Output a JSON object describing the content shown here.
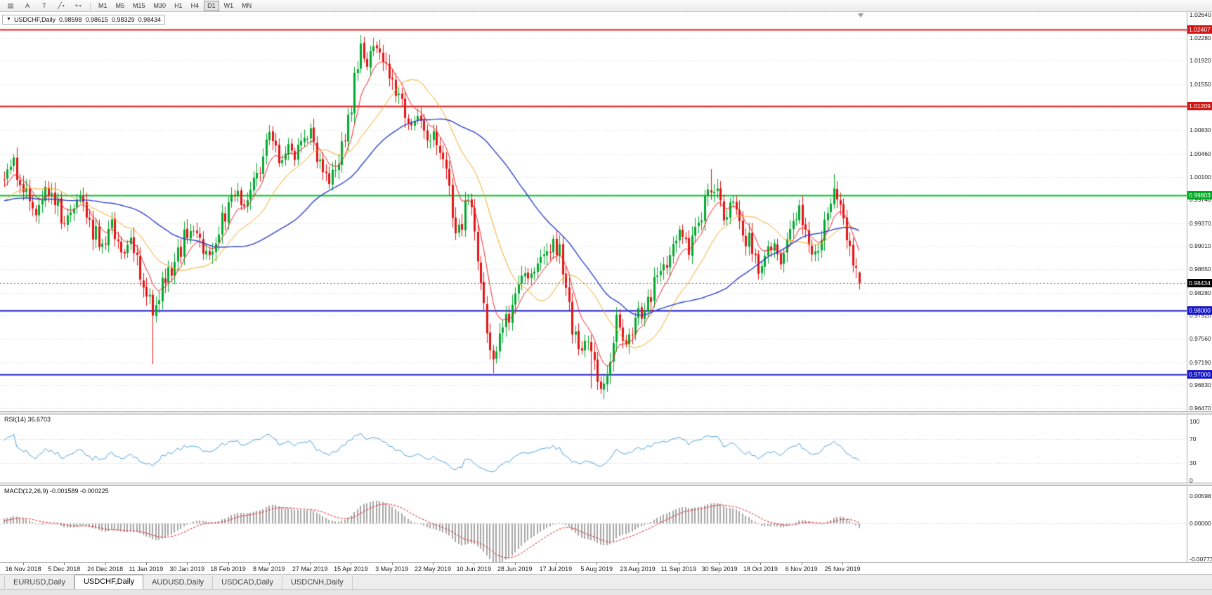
{
  "toolbar": {
    "dropdown_glyph": "▾",
    "icon_buttons": [
      {
        "button": "charts-list-button",
        "icon": "charts-list-icon",
        "glyph": "▤",
        "dropdown": false
      },
      {
        "button": "cursor-tool-button",
        "icon": "cursor-a-icon",
        "glyph": "A",
        "dropdown": false
      },
      {
        "button": "text-tool-button",
        "icon": "text-tool-icon",
        "glyph": "T",
        "dropdown": false
      },
      {
        "button": "draw-tools-button",
        "icon": "trendline-icon",
        "glyph": "╱",
        "dropdown": true
      },
      {
        "button": "crosshair-button",
        "icon": "crosshair-icon",
        "glyph": "+",
        "dropdown": true
      }
    ],
    "timeframes": [
      "M1",
      "M5",
      "M15",
      "M30",
      "H1",
      "H4",
      "D1",
      "W1",
      "MN"
    ],
    "active_timeframe": "D1"
  },
  "chart": {
    "dropdown_glyph": "▼",
    "title": "USDCHF,Daily",
    "open": "0.98598",
    "high": "0.98615",
    "low": "0.98329",
    "close": "0.98434"
  },
  "chart_data": {
    "type": "candlestick",
    "symbol": "USDCHF",
    "timeframe": "Daily",
    "current": {
      "open": 0.98598,
      "high": 0.98615,
      "low": 0.98329,
      "close": 0.98434
    },
    "y_ticks": [
      1.0264,
      1.0228,
      1.0192,
      1.0155,
      1.0119,
      1.0083,
      1.0046,
      1.001,
      0.9974,
      0.9937,
      0.9901,
      0.9865,
      0.9828,
      0.9792,
      0.9756,
      0.9719,
      0.9683,
      0.9647
    ],
    "x_dates": [
      "16 Nov 2018",
      "5 Dec 2018",
      "24 Dec 2018",
      "11 Jan 2019",
      "30 Jan 2019",
      "18 Feb 2019",
      "8 Mar 2019",
      "27 Mar 2019",
      "15 Apr 2019",
      "3 May 2019",
      "22 May 2019",
      "10 Jun 2019",
      "28 Jun 2019",
      "17 Jul 2019",
      "5 Aug 2019",
      "23 Aug 2019",
      "11 Sep 2019",
      "30 Sep 2019",
      "18 Oct 2019",
      "6 Nov 2019",
      "25 Nov 2019"
    ],
    "bars_per_label": 13,
    "price_path_anchors": [
      [
        -60,
        0.995
      ],
      [
        -40,
        0.999
      ],
      [
        -20,
        0.9945
      ],
      [
        -5,
        0.9985
      ],
      [
        0,
        1.0005
      ],
      [
        3,
        1.0038
      ],
      [
        6,
        0.9988
      ],
      [
        10,
        0.9955
      ],
      [
        13,
        1.0
      ],
      [
        16,
        0.997
      ],
      [
        19,
        0.9935
      ],
      [
        22,
        0.9968
      ],
      [
        25,
        0.9978
      ],
      [
        28,
        0.9925
      ],
      [
        31,
        0.9898
      ],
      [
        34,
        0.9942
      ],
      [
        37,
        0.9882
      ],
      [
        40,
        0.9908
      ],
      [
        43,
        0.9852
      ],
      [
        45,
        0.9828
      ],
      [
        47,
        0.9795
      ],
      [
        49,
        0.9822
      ],
      [
        51,
        0.9855
      ],
      [
        54,
        0.9872
      ],
      [
        57,
        0.9912
      ],
      [
        60,
        0.9932
      ],
      [
        63,
        0.9898
      ],
      [
        65,
        0.9885
      ],
      [
        68,
        0.9932
      ],
      [
        71,
        0.9968
      ],
      [
        74,
        0.9982
      ],
      [
        76,
        0.9958
      ],
      [
        79,
        1.0012
      ],
      [
        82,
        1.0042
      ],
      [
        84,
        1.0075
      ],
      [
        87,
        1.0032
      ],
      [
        90,
        1.0062
      ],
      [
        92,
        1.0042
      ],
      [
        95,
        1.0068
      ],
      [
        97,
        1.0082
      ],
      [
        100,
        1.0032
      ],
      [
        103,
        1.0002
      ],
      [
        106,
        1.0042
      ],
      [
        109,
        1.0092
      ],
      [
        111,
        1.0162
      ],
      [
        113,
        1.0208
      ],
      [
        115,
        1.0182
      ],
      [
        117,
        1.0216
      ],
      [
        120,
        1.0192
      ],
      [
        123,
        1.0152
      ],
      [
        126,
        1.0122
      ],
      [
        129,
        1.0092
      ],
      [
        131,
        1.0112
      ],
      [
        134,
        1.0078
      ],
      [
        137,
        1.0062
      ],
      [
        139,
        1.0022
      ],
      [
        141,
        0.9992
      ],
      [
        143,
        0.9922
      ],
      [
        145,
        0.9942
      ],
      [
        147,
        0.9978
      ],
      [
        149,
        0.9942
      ],
      [
        151,
        0.9832
      ],
      [
        153,
        0.9772
      ],
      [
        155,
        0.9726
      ],
      [
        157,
        0.9752
      ],
      [
        159,
        0.9786
      ],
      [
        162,
        0.9822
      ],
      [
        165,
        0.9852
      ],
      [
        168,
        0.9862
      ],
      [
        171,
        0.9876
      ],
      [
        174,
        0.9912
      ],
      [
        176,
        0.9892
      ],
      [
        178,
        0.9842
      ],
      [
        180,
        0.9772
      ],
      [
        182,
        0.9736
      ],
      [
        184,
        0.9752
      ],
      [
        186,
        0.9726
      ],
      [
        188,
        0.9692
      ],
      [
        190,
        0.9673
      ],
      [
        192,
        0.9722
      ],
      [
        194,
        0.9782
      ],
      [
        196,
        0.9756
      ],
      [
        198,
        0.9746
      ],
      [
        200,
        0.9802
      ],
      [
        202,
        0.9782
      ],
      [
        205,
        0.9826
      ],
      [
        208,
        0.9856
      ],
      [
        211,
        0.9886
      ],
      [
        214,
        0.9922
      ],
      [
        217,
        0.9896
      ],
      [
        220,
        0.9942
      ],
      [
        223,
        0.9986
      ],
      [
        225,
        0.9996
      ],
      [
        228,
        0.9946
      ],
      [
        231,
        0.9976
      ],
      [
        234,
        0.9932
      ],
      [
        237,
        0.9892
      ],
      [
        239,
        0.9862
      ],
      [
        241,
        0.9882
      ],
      [
        244,
        0.9906
      ],
      [
        246,
        0.9876
      ],
      [
        249,
        0.9922
      ],
      [
        252,
        0.9962
      ],
      [
        254,
        0.9922
      ],
      [
        256,
        0.9882
      ],
      [
        258,
        0.9906
      ],
      [
        260,
        0.9932
      ],
      [
        262,
        0.9976
      ],
      [
        263,
        0.9992
      ],
      [
        265,
        0.9952
      ],
      [
        267,
        0.9922
      ],
      [
        269,
        0.9882
      ],
      [
        271,
        0.98434
      ]
    ],
    "spikes": [
      {
        "i": 47,
        "low": 0.9716
      },
      {
        "i": 113,
        "high": 1.0232
      },
      {
        "i": 117,
        "high": 1.0228
      },
      {
        "i": 155,
        "low": 0.9702
      },
      {
        "i": 186,
        "low": 0.9678
      },
      {
        "i": 190,
        "low": 0.9661
      },
      {
        "i": 224,
        "high": 1.0022
      },
      {
        "i": 263,
        "high": 1.0014
      }
    ],
    "hlines": [
      {
        "price": 1.02407,
        "label": "1.02407",
        "color": "#e02020",
        "label_bg": "#d21616",
        "width": 2
      },
      {
        "price": 1.01209,
        "label": "1.01209",
        "color": "#e02020",
        "label_bg": "#d21616",
        "width": 2
      },
      {
        "price": 0.99803,
        "label": "0.99803",
        "color": "#00c42a",
        "label_bg": "#00a824",
        "width": 2
      },
      {
        "price": 0.98,
        "label": "0.98000",
        "color": "#1414c8",
        "label_bg": "#1414c8",
        "width": 2
      },
      {
        "price": 0.97,
        "label": "0.97000",
        "color": "#1414c8",
        "label_bg": "#1414c8",
        "width": 2
      }
    ],
    "bid_line": {
      "price": 0.98434,
      "label": "0.98434",
      "label_bg": "#000000"
    },
    "colors": {
      "up": "#00a82d",
      "down": "#e21212",
      "ma_fast": "#ef2222",
      "ma_mid": "#f2a71f",
      "ma_slow": "#2c43c8",
      "rsi": "#4aa1dc",
      "macd_hist": "#a6a6a6",
      "macd_signal": "#e81414",
      "grid": "#d9d9d9"
    },
    "ma_periods": {
      "fast": 8,
      "mid": 21,
      "slow": 50
    },
    "rsi_panel": {
      "label": "RSI(14) 36.6703",
      "value": 36.6703,
      "period": 14,
      "ticks": [
        100,
        70,
        30,
        0
      ],
      "guides": [
        70,
        30
      ]
    },
    "macd_panel": {
      "label": "MACD(12,26,9) -0.001589 -0.000225",
      "macd": -0.001589,
      "signal": -0.000225,
      "params": [
        12,
        26,
        9
      ],
      "ticks": [
        0.00598,
        0.0,
        -0.00773
      ]
    }
  },
  "tabs": [
    {
      "label": "EURUSD,Daily",
      "active": false
    },
    {
      "label": "USDCHF,Daily",
      "active": true
    },
    {
      "label": "AUDUSD,Daily",
      "active": false
    },
    {
      "label": "USDCAD,Daily",
      "active": false
    },
    {
      "label": "USDCNH,Daily",
      "active": false
    }
  ]
}
